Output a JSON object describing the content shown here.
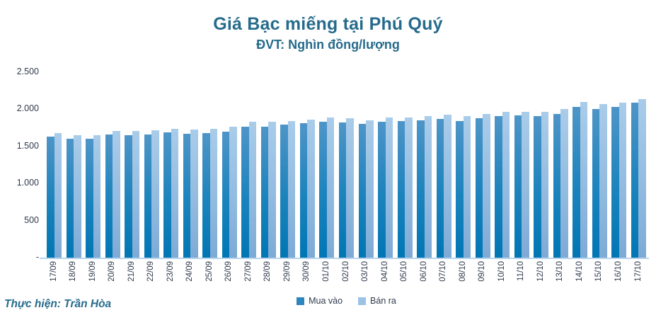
{
  "header": {
    "title": "Giá Bạc miếng tại Phú Quý",
    "subtitle": "ĐVT: Nghìn đồng/lượng"
  },
  "footer": {
    "credit": "Thực hiện: Trần Hòa"
  },
  "colors": {
    "heading_text": "#266b8c",
    "axis_text": "#2f3b4d",
    "baseline": "#b9d5ee",
    "buy_bar_top": "#4e95c8",
    "buy_bar_bottom": "#0076b4",
    "sell_bar_top": "#a9cce9",
    "sell_bar_bottom": "#7daad6",
    "legend_buy": "#2e86c0",
    "legend_sell": "#9cc3e5"
  },
  "chart_data": {
    "type": "bar",
    "title": "Giá Bạc miếng tại Phú Quý",
    "subtitle": "ĐVT: Nghìn đồng/lượng",
    "ylabel": "Nghìn đồng/lượng",
    "xlabel": "",
    "grid": false,
    "legend_position": "bottom-center",
    "ylim": [
      0,
      2500
    ],
    "y_ticks": [
      {
        "value": 2500,
        "label": "2.500"
      },
      {
        "value": 2000,
        "label": "2.000"
      },
      {
        "value": 1500,
        "label": "1.500"
      },
      {
        "value": 1000,
        "label": "1.000"
      },
      {
        "value": 500,
        "label": "500"
      },
      {
        "value": 0,
        "label": "-"
      }
    ],
    "categories": [
      "17/09",
      "18/09",
      "19/09",
      "20/09",
      "21/09",
      "22/09",
      "23/09",
      "24/09",
      "25/09",
      "26/09",
      "27/09",
      "28/09",
      "29/09",
      "30/09",
      "01/10",
      "02/10",
      "03/10",
      "04/10",
      "05/10",
      "06/10",
      "07/10",
      "08/10",
      "09/10",
      "10/10",
      "11/10",
      "12/10",
      "13/10",
      "14/10",
      "15/10",
      "16/10",
      "17/10"
    ],
    "series": [
      {
        "name": "Mua vào",
        "values": [
          1630,
          1600,
          1600,
          1660,
          1650,
          1660,
          1690,
          1670,
          1680,
          1700,
          1770,
          1770,
          1790,
          1810,
          1830,
          1820,
          1800,
          1830,
          1840,
          1850,
          1870,
          1840,
          1880,
          1910,
          1920,
          1910,
          1940,
          2030,
          2000,
          2030,
          2090
        ]
      },
      {
        "name": "Bán ra",
        "values": [
          1680,
          1650,
          1650,
          1710,
          1710,
          1720,
          1740,
          1730,
          1740,
          1770,
          1830,
          1830,
          1840,
          1860,
          1890,
          1880,
          1850,
          1890,
          1890,
          1910,
          1930,
          1910,
          1940,
          1970,
          1970,
          1970,
          2000,
          2100,
          2070,
          2090,
          2140
        ]
      }
    ]
  }
}
